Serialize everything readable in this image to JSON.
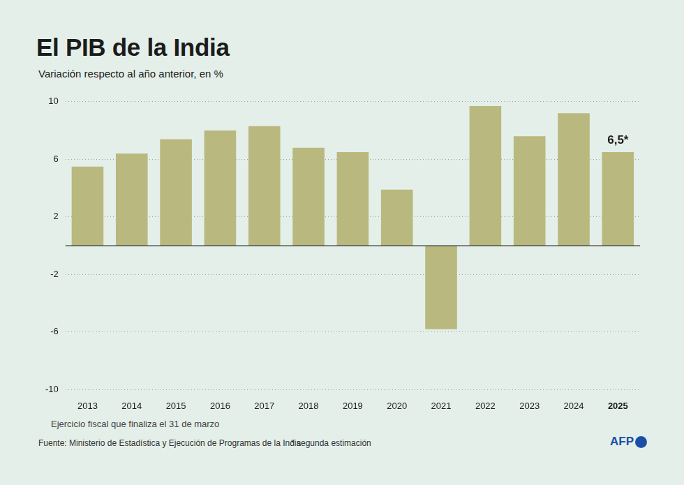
{
  "chart_data": {
    "type": "bar",
    "title": "El PIB de la India",
    "subtitle": "Variación respecto al año anterior, en %",
    "categories": [
      "2013",
      "2014",
      "2015",
      "2016",
      "2017",
      "2018",
      "2019",
      "2020",
      "2021",
      "2022",
      "2023",
      "2024",
      "2025"
    ],
    "values": [
      5.5,
      6.4,
      7.4,
      8.0,
      8.3,
      6.8,
      6.5,
      3.9,
      -5.8,
      9.7,
      7.6,
      9.2,
      6.5
    ],
    "color": "#b9b97f",
    "ylim": [
      -10,
      10
    ],
    "yticks": [
      -10,
      -6,
      -2,
      2,
      6,
      10
    ],
    "grid": true,
    "annotations": [
      {
        "category": "2025",
        "value": 6.5,
        "label": "6,5*"
      }
    ],
    "note": "Ejercicio fiscal que finaliza el 31 de marzo",
    "source": "Fuente: Ministerio de Estadística y Ejecución de Programas de la India",
    "footnote": "* segunda estimación",
    "credit": "AFP"
  }
}
